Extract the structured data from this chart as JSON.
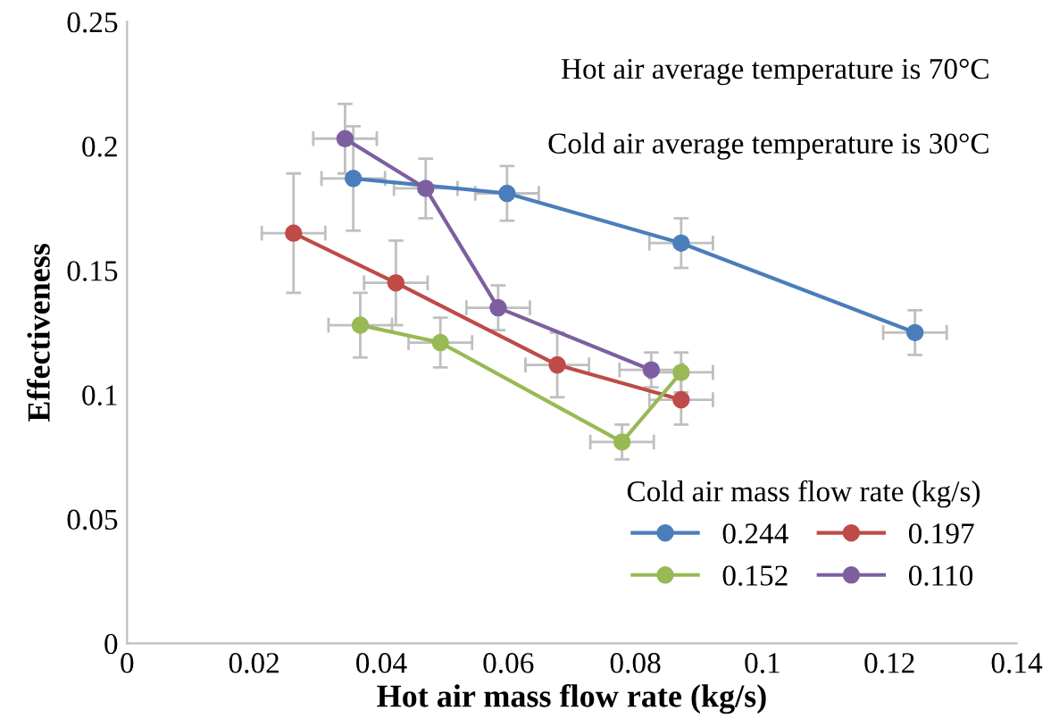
{
  "chart_data": {
    "type": "line",
    "xlabel": "Hot air mass flow rate (kg/s)",
    "ylabel": "Effectiveness",
    "legend_title": "Cold air mass flow rate (kg/s)",
    "annotations": [
      "Hot air average temperature is 70°C",
      "Cold air average temperature is 30°C"
    ],
    "xlim": [
      0,
      0.14
    ],
    "xticks": [
      0,
      0.02,
      0.04,
      0.06,
      0.08,
      0.1,
      0.12,
      0.14
    ],
    "ylim": [
      0,
      0.25
    ],
    "yticks": [
      0,
      0.05,
      0.1,
      0.15,
      0.2,
      0.25
    ],
    "grid": false,
    "legend": "bottom right",
    "marker": "circle",
    "line_style": "solid",
    "series": [
      {
        "name": "0.244",
        "color": "#4a7ebb",
        "x": [
          0.0356,
          0.0598,
          0.0872,
          0.124
        ],
        "values": [
          0.187,
          0.181,
          0.161,
          0.125
        ],
        "errors": [
          0.021,
          0.011,
          0.01,
          0.009
        ],
        "xerrors": [
          0.005,
          0.005,
          0.005,
          0.005
        ]
      },
      {
        "name": "0.197",
        "color": "#be4b48",
        "x": [
          0.0262,
          0.0423,
          0.0677,
          0.0872
        ],
        "values": [
          0.165,
          0.145,
          0.112,
          0.098
        ],
        "errors": [
          0.024,
          0.017,
          0.013,
          0.01
        ],
        "xerrors": [
          0.005,
          0.005,
          0.005,
          0.005
        ]
      },
      {
        "name": "0.152",
        "color": "#98b954",
        "x": [
          0.0367,
          0.0493,
          0.0779,
          0.0872
        ],
        "values": [
          0.128,
          0.121,
          0.081,
          0.109
        ],
        "errors": [
          0.013,
          0.01,
          0.007,
          0.008
        ],
        "xerrors": [
          0.005,
          0.005,
          0.005,
          0.005
        ]
      },
      {
        "name": "0.110",
        "color": "#7d5fa0",
        "x": [
          0.0343,
          0.047,
          0.0584,
          0.0825
        ],
        "values": [
          0.203,
          0.183,
          0.135,
          0.11
        ],
        "errors": [
          0.014,
          0.012,
          0.009,
          0.007
        ],
        "xerrors": [
          0.005,
          0.005,
          0.005,
          0.005
        ]
      }
    ]
  }
}
